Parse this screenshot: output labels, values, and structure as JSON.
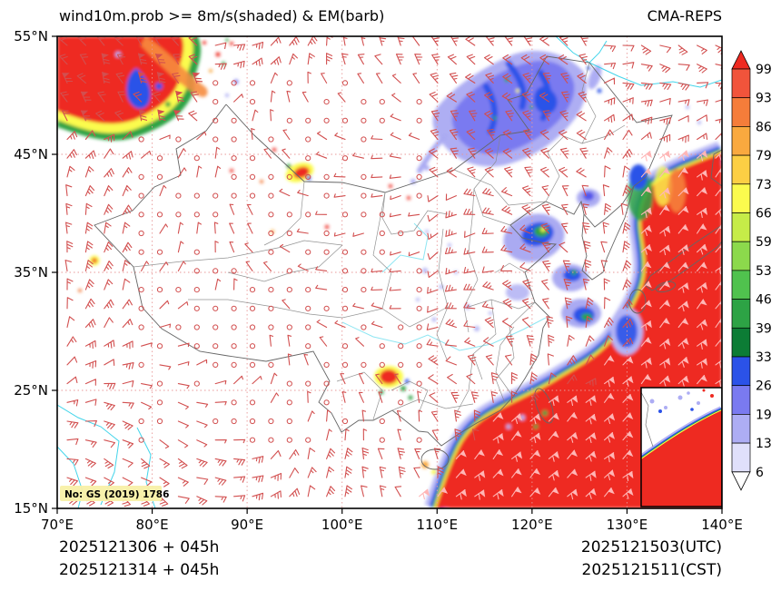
{
  "header": {
    "title": "wind10m.prob >= 8m/s(shaded) & EM(barb)",
    "model": "CMA-REPS"
  },
  "axes": {
    "x_ticks": [
      "70°E",
      "80°E",
      "90°E",
      "100°E",
      "110°E",
      "120°E",
      "130°E",
      "140°E"
    ],
    "y_ticks": [
      "55°N",
      "45°N",
      "35°N",
      "25°N",
      "15°N"
    ]
  },
  "colorbar": {
    "labels": [
      "99",
      "93",
      "86",
      "79",
      "73",
      "66",
      "59",
      "53",
      "46",
      "39",
      "33",
      "26",
      "19",
      "13",
      "6"
    ],
    "segment_colors": [
      "#f1543b",
      "#f57d3a",
      "#f9a93f",
      "#fccf44",
      "#fbfb4e",
      "#c6ec48",
      "#8cd94c",
      "#50c24e",
      "#2da345",
      "#0c7c35",
      "#2b52e8",
      "#7a7af0",
      "#adadf4",
      "#e0e0fb"
    ],
    "over_color": "#ee2a21",
    "under_color": "#ffffff"
  },
  "footer": {
    "init_utc": "2025121306 + 045h",
    "init_cst": "2025121314 + 045h",
    "valid_utc": "2025121503(UTC)",
    "valid_cst": "2025121511(CST)"
  },
  "watermark": "No: GS (2019) 1786",
  "chart_data": {
    "type": "heatmap",
    "title": "wind10m.prob >= 8m/s(shaded) & EM(barb)",
    "model_label": "CMA-REPS",
    "x_axis": {
      "kind": "longitude",
      "range_deg_east": [
        70,
        140
      ],
      "ticks": [
        "70°E",
        "80°E",
        "90°E",
        "100°E",
        "110°E",
        "120°E",
        "130°E",
        "140°E"
      ]
    },
    "y_axis": {
      "kind": "latitude",
      "range_deg_north": [
        15,
        55
      ],
      "ticks": [
        "15°N",
        "25°N",
        "35°N",
        "45°N",
        "55°N"
      ]
    },
    "colorbar": {
      "quantity": "probability of wind10m >= 8 m/s (%)",
      "levels": [
        6,
        13,
        19,
        26,
        33,
        39,
        46,
        53,
        59,
        66,
        73,
        79,
        86,
        93,
        99
      ],
      "over": ">99 red",
      "under": "<6 white"
    },
    "init_time": "2025121306 UTC / 2025121314 CST",
    "lead_time_hours": 45,
    "valid_time": "2025121503 UTC / 2025121511 CST",
    "shaded_regions": [
      {
        "name": "northwest-corner-storm",
        "lon": [
          70,
          85
        ],
        "lat": [
          47,
          55
        ],
        "peak_level": ">99",
        "note": "red core with yellow/green fringe and blue streaks"
      },
      {
        "name": "tianshan-small-patches",
        "lon": [
          88,
          98
        ],
        "lat": [
          41,
          45
        ],
        "peak_level": ">99"
      },
      {
        "name": "west-tibet-speck",
        "lon": [
          73,
          75
        ],
        "lat": [
          35,
          37
        ],
        "peak_level": 93
      },
      {
        "name": "northeast-china-band",
        "lon": [
          109,
          126
        ],
        "lat": [
          43,
          52
        ],
        "peak_level": 33,
        "note": "lavender/purple with dark blue streaks"
      },
      {
        "name": "bohai-yellow-sea-patches",
        "lon": [
          117,
          126
        ],
        "lat": [
          33,
          40
        ],
        "peak_level": 73,
        "note": "lavender halo, blue cores, green/yellow centers"
      },
      {
        "name": "east-sea-strip",
        "lon": [
          130,
          140
        ],
        "lat": [
          25,
          45
        ],
        "peak_level": ">99",
        "note": "green/blue western fringe, red core"
      },
      {
        "name": "southeast-coastal-sea",
        "lon": [
          105,
          140
        ],
        "lat": [
          15,
          30
        ],
        "peak_level": ">99",
        "note": "large red area, lavender-blue-green fringe along China coast"
      },
      {
        "name": "yunnan-patch",
        "lon": [
          102,
          105
        ],
        "lat": [
          24,
          27
        ],
        "peak_level": ">99"
      },
      {
        "name": "south-china-sea-inset",
        "peak_level": ">99"
      }
    ],
    "wind_barbs": {
      "description": "ensemble-mean 10 m wind barbs on ~2 degree grid",
      "color": "#d24f4f",
      "calm_symbol": "open circle over central/western China",
      "strong_symbol": "pennant barbs over southeastern seas",
      "grid_spacing_px": 20.5
    }
  }
}
